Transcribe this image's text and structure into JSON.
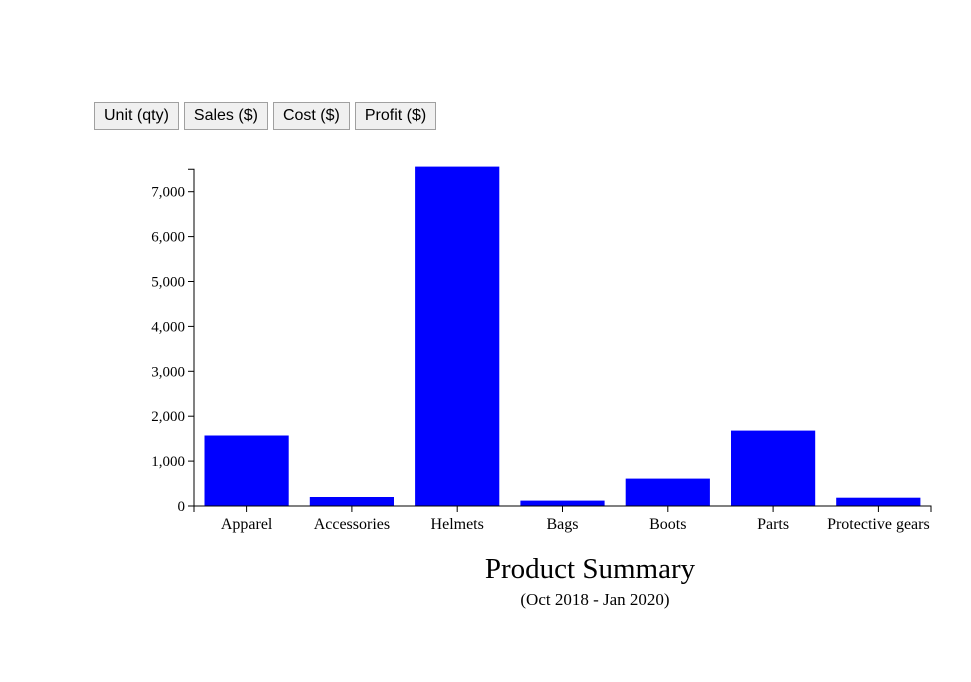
{
  "toolbar": {
    "buttons": [
      {
        "label": "Unit (qty)"
      },
      {
        "label": "Sales ($)"
      },
      {
        "label": "Cost ($)"
      },
      {
        "label": "Profit ($)"
      }
    ]
  },
  "chart_data": {
    "type": "bar",
    "title": "Product Summary",
    "subtitle": "(Oct 2018 - Jan 2020)",
    "categories": [
      "Apparel",
      "Accessories",
      "Helmets",
      "Bags",
      "Boots",
      "Parts",
      "Protective gears"
    ],
    "values": [
      1570,
      200,
      7560,
      120,
      610,
      1680,
      185
    ],
    "ylim": [
      0,
      7500
    ],
    "yticks": [
      0,
      1000,
      2000,
      3000,
      4000,
      5000,
      6000,
      7000
    ],
    "ytick_labels": [
      "0",
      "1,000",
      "2,000",
      "3,000",
      "4,000",
      "5,000",
      "6,000",
      "7,000"
    ],
    "bar_color": "#0000ff",
    "xlabel": "",
    "ylabel": "",
    "grid": false
  }
}
